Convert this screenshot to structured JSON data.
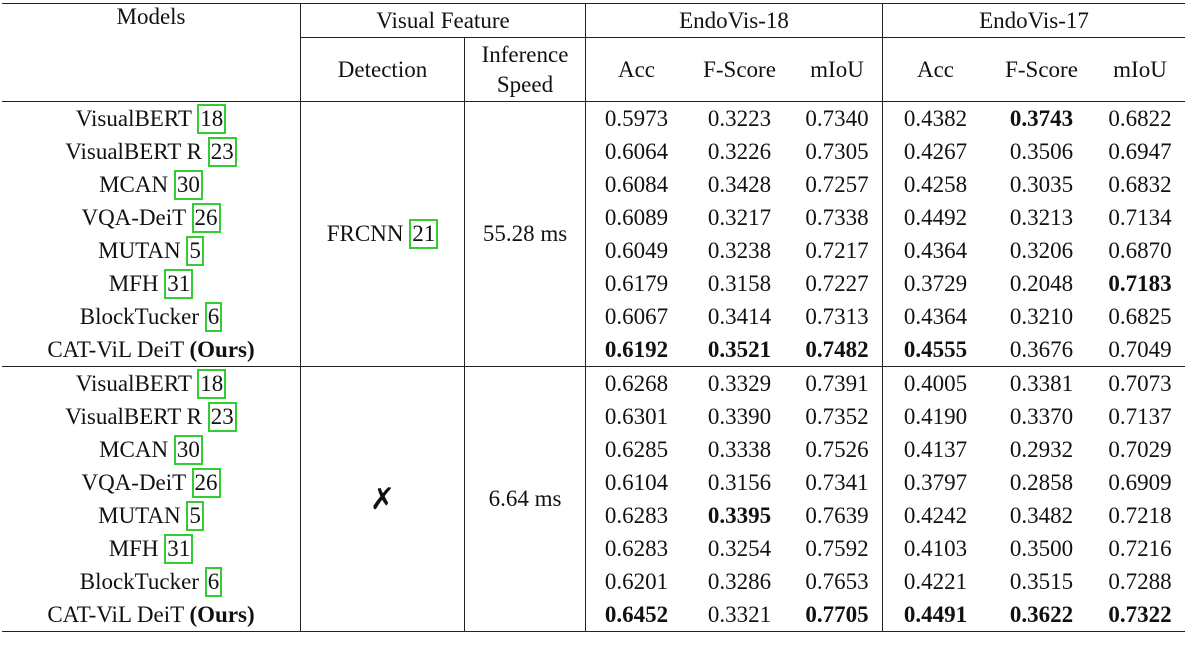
{
  "header": {
    "models": "Models",
    "visual_feature": "Visual Feature",
    "detection": "Detection",
    "inference_speed": "Inference Speed",
    "endovis18": "EndoVis-18",
    "endovis17": "EndoVis-17",
    "metrics": [
      "Acc",
      "F-Score",
      "mIoU"
    ]
  },
  "groups": [
    {
      "detection": "FRCNN",
      "detection_cite": "21",
      "speed": "55.28 ms",
      "rows": [
        {
          "model": "VisualBERT",
          "cite": "18",
          "values": [
            "0.5973",
            "0.3223",
            "0.7340",
            "0.4382",
            "0.3743",
            "0.6822"
          ],
          "bold": [
            4
          ]
        },
        {
          "model": "VisualBERT R",
          "cite": "23",
          "values": [
            "0.6064",
            "0.3226",
            "0.7305",
            "0.4267",
            "0.3506",
            "0.6947"
          ],
          "bold": []
        },
        {
          "model": "MCAN",
          "cite": "30",
          "values": [
            "0.6084",
            "0.3428",
            "0.7257",
            "0.4258",
            "0.3035",
            "0.6832"
          ],
          "bold": []
        },
        {
          "model": "VQA-DeiT",
          "cite": "26",
          "values": [
            "0.6089",
            "0.3217",
            "0.7338",
            "0.4492",
            "0.3213",
            "0.7134"
          ],
          "bold": []
        },
        {
          "model": "MUTAN",
          "cite": "5",
          "values": [
            "0.6049",
            "0.3238",
            "0.7217",
            "0.4364",
            "0.3206",
            "0.6870"
          ],
          "bold": []
        },
        {
          "model": "MFH",
          "cite": "31",
          "values": [
            "0.6179",
            "0.3158",
            "0.7227",
            "0.3729",
            "0.2048",
            "0.7183"
          ],
          "bold": [
            5
          ]
        },
        {
          "model": "BlockTucker",
          "cite": "6",
          "values": [
            "0.6067",
            "0.3414",
            "0.7313",
            "0.4364",
            "0.3210",
            "0.6825"
          ],
          "bold": []
        },
        {
          "model": "CAT-ViL DeiT",
          "suffix": "(Ours)",
          "values": [
            "0.6192",
            "0.3521",
            "0.7482",
            "0.4555",
            "0.3676",
            "0.7049"
          ],
          "bold": [
            0,
            1,
            2,
            3
          ]
        }
      ]
    },
    {
      "detection": "✗",
      "speed": "6.64 ms",
      "rows": [
        {
          "model": "VisualBERT",
          "cite": "18",
          "values": [
            "0.6268",
            "0.3329",
            "0.7391",
            "0.4005",
            "0.3381",
            "0.7073"
          ],
          "bold": []
        },
        {
          "model": "VisualBERT R",
          "cite": "23",
          "values": [
            "0.6301",
            "0.3390",
            "0.7352",
            "0.4190",
            "0.3370",
            "0.7137"
          ],
          "bold": []
        },
        {
          "model": "MCAN",
          "cite": "30",
          "values": [
            "0.6285",
            "0.3338",
            "0.7526",
            "0.4137",
            "0.2932",
            "0.7029"
          ],
          "bold": []
        },
        {
          "model": "VQA-DeiT",
          "cite": "26",
          "values": [
            "0.6104",
            "0.3156",
            "0.7341",
            "0.3797",
            "0.2858",
            "0.6909"
          ],
          "bold": []
        },
        {
          "model": "MUTAN",
          "cite": "5",
          "values": [
            "0.6283",
            "0.3395",
            "0.7639",
            "0.4242",
            "0.3482",
            "0.7218"
          ],
          "bold": [
            1
          ]
        },
        {
          "model": "MFH",
          "cite": "31",
          "values": [
            "0.6283",
            "0.3254",
            "0.7592",
            "0.4103",
            "0.3500",
            "0.7216"
          ],
          "bold": []
        },
        {
          "model": "BlockTucker",
          "cite": "6",
          "values": [
            "0.6201",
            "0.3286",
            "0.7653",
            "0.4221",
            "0.3515",
            "0.7288"
          ],
          "bold": []
        },
        {
          "model": "CAT-ViL DeiT",
          "suffix": "(Ours)",
          "values": [
            "0.6452",
            "0.3321",
            "0.7705",
            "0.4491",
            "0.3622",
            "0.7322"
          ],
          "bold": [
            0,
            2,
            3,
            4,
            5
          ]
        }
      ]
    }
  ]
}
